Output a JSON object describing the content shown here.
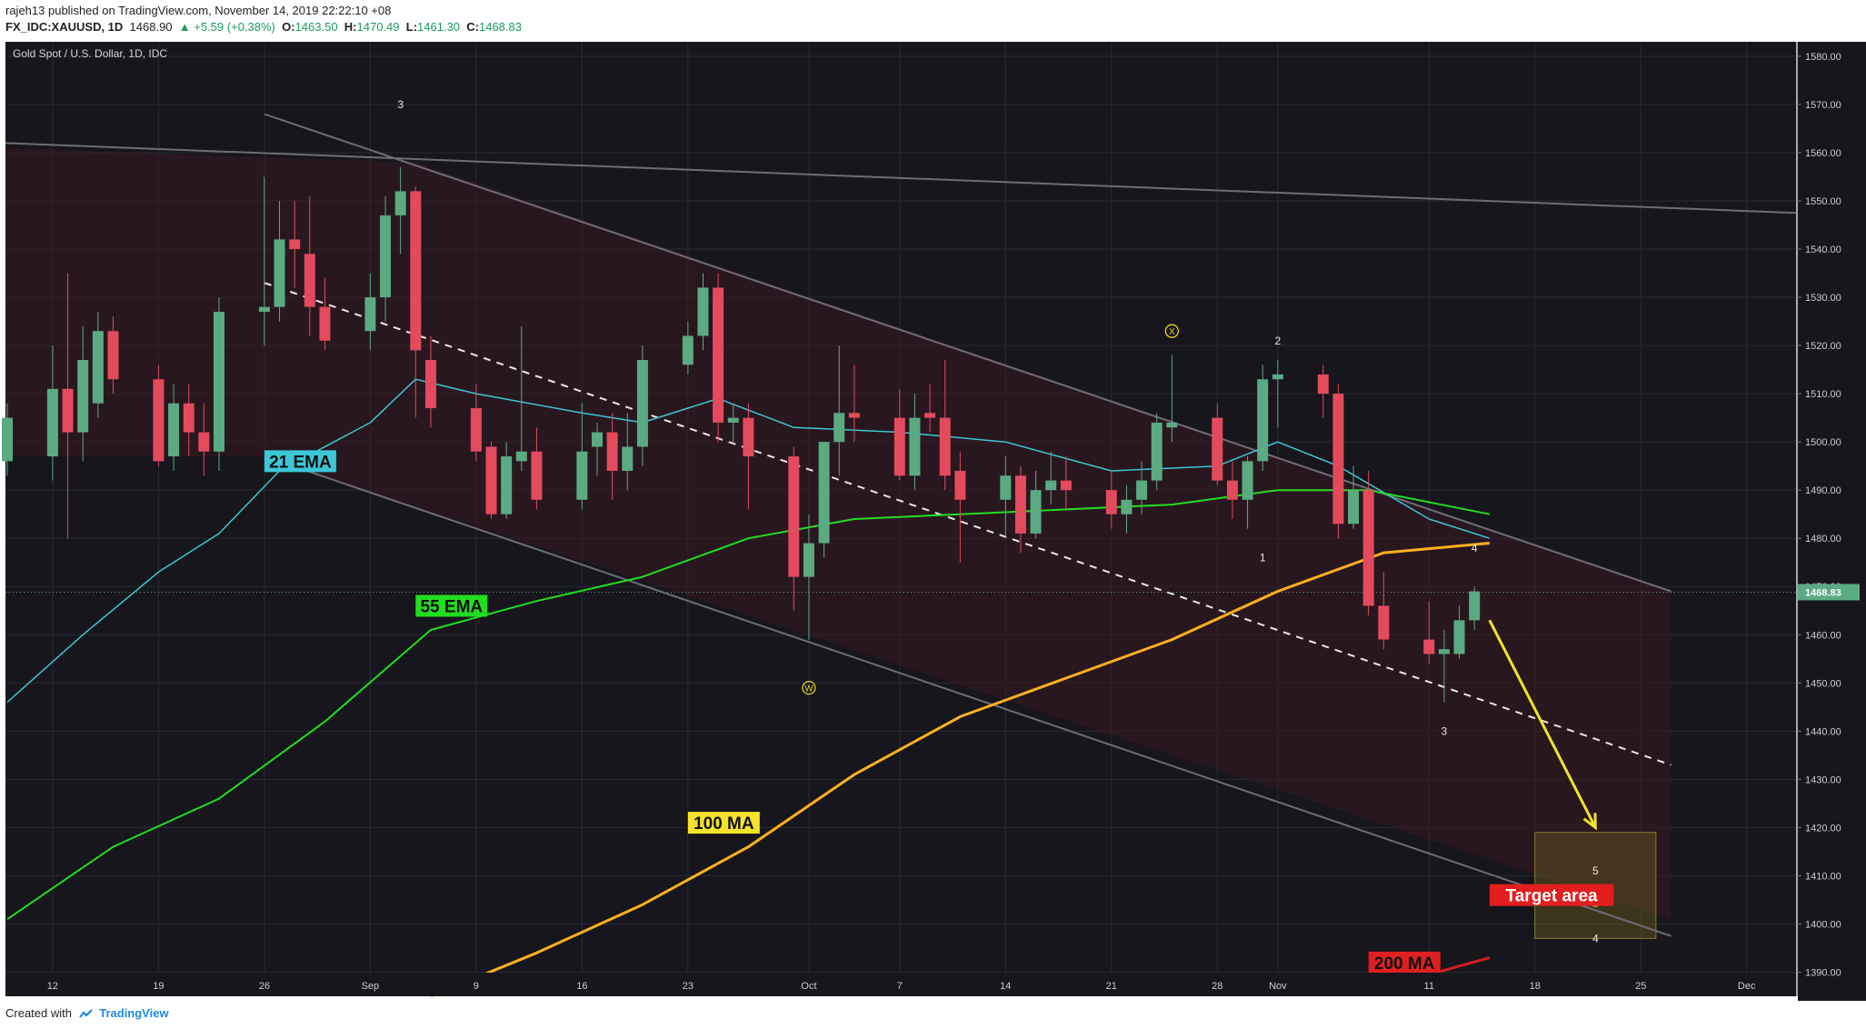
{
  "header": {
    "line1": "rajeh13 published on TradingView.com, November 14, 2019 22:22:10 +08",
    "symbol": "FX_IDC:XAUUSD, 1D",
    "last": "1468.90",
    "change": "▲ +5.59 (+0.38%)",
    "o_label": "O:",
    "o": "1463.50",
    "h_label": "H:",
    "h": "1470.49",
    "l_label": "L:",
    "l": "1461.30",
    "c_label": "C:",
    "c": "1468.83"
  },
  "footer": {
    "created": "Created with",
    "brand": "TradingView"
  },
  "chart_data": {
    "type": "candlestick",
    "title": "Gold Spot / U.S. Dollar, 1D, IDC",
    "ylim": [
      1385,
      1583
    ],
    "y_ticks": [
      1390,
      1400,
      1410,
      1420,
      1430,
      1440,
      1450,
      1460,
      1470,
      1480,
      1490,
      1500,
      1510,
      1520,
      1530,
      1540,
      1550,
      1560,
      1570,
      1580
    ],
    "y_tick_labels": [
      "1390.00",
      "1400.00",
      "1410.00",
      "1420.00",
      "1430.00",
      "1440.00",
      "1450.00",
      "1460.00",
      "1470.00",
      "1480.00",
      "1490.00",
      "1500.00",
      "1510.00",
      "1520.00",
      "1530.00",
      "1540.00",
      "1550.00",
      "1560.00",
      "1570.00",
      "1580.00"
    ],
    "x_range": [
      "2019-08-09",
      "2019-12-04"
    ],
    "x_ticks": [
      {
        "date": "2019-08-12",
        "label": "12"
      },
      {
        "date": "2019-08-19",
        "label": "19"
      },
      {
        "date": "2019-08-26",
        "label": "26"
      },
      {
        "date": "2019-09-02",
        "label": "Sep"
      },
      {
        "date": "2019-09-09",
        "label": "9"
      },
      {
        "date": "2019-09-16",
        "label": "16"
      },
      {
        "date": "2019-09-23",
        "label": "23"
      },
      {
        "date": "2019-10-01",
        "label": "Oct"
      },
      {
        "date": "2019-10-07",
        "label": "7"
      },
      {
        "date": "2019-10-14",
        "label": "14"
      },
      {
        "date": "2019-10-21",
        "label": "21"
      },
      {
        "date": "2019-10-28",
        "label": "28"
      },
      {
        "date": "2019-11-01",
        "label": "Nov"
      },
      {
        "date": "2019-11-11",
        "label": "11"
      },
      {
        "date": "2019-11-18",
        "label": "18"
      },
      {
        "date": "2019-11-25",
        "label": "25"
      },
      {
        "date": "2019-12-02",
        "label": "Dec"
      }
    ],
    "last_price": 1468.83,
    "last_price_label": "1468.83",
    "colors": {
      "up": "#5bab82",
      "down": "#e34b5c",
      "ema21": "#3fc6d6",
      "ema55": "#22dd22",
      "ma100": "#ffb020",
      "ma200": "#d02020",
      "background": "#16161c"
    },
    "candles": [
      {
        "date": "2019-08-09",
        "o": 1496,
        "h": 1508,
        "l": 1493,
        "c": 1505
      },
      {
        "date": "2019-08-12",
        "o": 1497,
        "h": 1520,
        "l": 1492,
        "c": 1511
      },
      {
        "date": "2019-08-13",
        "o": 1511,
        "h": 1535,
        "l": 1480,
        "c": 1502
      },
      {
        "date": "2019-08-14",
        "o": 1502,
        "h": 1524,
        "l": 1496,
        "c": 1517
      },
      {
        "date": "2019-08-15",
        "o": 1508,
        "h": 1527,
        "l": 1505,
        "c": 1523
      },
      {
        "date": "2019-08-16",
        "o": 1523,
        "h": 1526,
        "l": 1510,
        "c": 1513
      },
      {
        "date": "2019-08-19",
        "o": 1513,
        "h": 1516,
        "l": 1495,
        "c": 1496
      },
      {
        "date": "2019-08-20",
        "o": 1497,
        "h": 1512,
        "l": 1494,
        "c": 1508
      },
      {
        "date": "2019-08-21",
        "o": 1508,
        "h": 1512,
        "l": 1497,
        "c": 1502
      },
      {
        "date": "2019-08-22",
        "o": 1502,
        "h": 1508,
        "l": 1493,
        "c": 1498
      },
      {
        "date": "2019-08-23",
        "o": 1498,
        "h": 1530,
        "l": 1494,
        "c": 1527
      },
      {
        "date": "2019-08-26",
        "o": 1527,
        "h": 1555,
        "l": 1520,
        "c": 1528
      },
      {
        "date": "2019-08-27",
        "o": 1528,
        "h": 1550,
        "l": 1525,
        "c": 1542
      },
      {
        "date": "2019-08-28",
        "o": 1542,
        "h": 1550,
        "l": 1532,
        "c": 1540
      },
      {
        "date": "2019-08-29",
        "o": 1539,
        "h": 1551,
        "l": 1522,
        "c": 1528
      },
      {
        "date": "2019-08-30",
        "o": 1528,
        "h": 1534,
        "l": 1519,
        "c": 1521
      },
      {
        "date": "2019-09-02",
        "o": 1523,
        "h": 1535,
        "l": 1519,
        "c": 1530
      },
      {
        "date": "2019-09-03",
        "o": 1530,
        "h": 1551,
        "l": 1525,
        "c": 1547
      },
      {
        "date": "2019-09-04",
        "o": 1547,
        "h": 1557,
        "l": 1539,
        "c": 1552
      },
      {
        "date": "2019-09-05",
        "o": 1552,
        "h": 1553,
        "l": 1505,
        "c": 1519
      },
      {
        "date": "2019-09-06",
        "o": 1517,
        "h": 1522,
        "l": 1503,
        "c": 1507
      },
      {
        "date": "2019-09-09",
        "o": 1507,
        "h": 1512,
        "l": 1496,
        "c": 1498
      },
      {
        "date": "2019-09-10",
        "o": 1499,
        "h": 1500,
        "l": 1484,
        "c": 1485
      },
      {
        "date": "2019-09-11",
        "o": 1485,
        "h": 1500,
        "l": 1484,
        "c": 1497
      },
      {
        "date": "2019-09-12",
        "o": 1496,
        "h": 1524,
        "l": 1494,
        "c": 1498
      },
      {
        "date": "2019-09-13",
        "o": 1498,
        "h": 1503,
        "l": 1486,
        "c": 1488
      },
      {
        "date": "2019-09-16",
        "o": 1488,
        "h": 1508,
        "l": 1486,
        "c": 1498
      },
      {
        "date": "2019-09-17",
        "o": 1499,
        "h": 1504,
        "l": 1493,
        "c": 1502
      },
      {
        "date": "2019-09-18",
        "o": 1502,
        "h": 1506,
        "l": 1488,
        "c": 1494
      },
      {
        "date": "2019-09-19",
        "o": 1494,
        "h": 1506,
        "l": 1490,
        "c": 1499
      },
      {
        "date": "2019-09-20",
        "o": 1499,
        "h": 1520,
        "l": 1495,
        "c": 1517
      },
      {
        "date": "2019-09-23",
        "o": 1516,
        "h": 1525,
        "l": 1514,
        "c": 1522
      },
      {
        "date": "2019-09-24",
        "o": 1522,
        "h": 1535,
        "l": 1519,
        "c": 1532
      },
      {
        "date": "2019-09-25",
        "o": 1532,
        "h": 1535,
        "l": 1500,
        "c": 1504
      },
      {
        "date": "2019-09-26",
        "o": 1504,
        "h": 1508,
        "l": 1500,
        "c": 1505
      },
      {
        "date": "2019-09-27",
        "o": 1505,
        "h": 1508,
        "l": 1486,
        "c": 1497
      },
      {
        "date": "2019-09-30",
        "o": 1497,
        "h": 1499,
        "l": 1465,
        "c": 1472
      },
      {
        "date": "2019-10-01",
        "o": 1472,
        "h": 1485,
        "l": 1459,
        "c": 1479
      },
      {
        "date": "2019-10-02",
        "o": 1479,
        "h": 1500,
        "l": 1476,
        "c": 1500
      },
      {
        "date": "2019-10-03",
        "o": 1500,
        "h": 1520,
        "l": 1493,
        "c": 1506
      },
      {
        "date": "2019-10-04",
        "o": 1506,
        "h": 1516,
        "l": 1500,
        "c": 1505
      },
      {
        "date": "2019-10-07",
        "o": 1505,
        "h": 1511,
        "l": 1492,
        "c": 1493
      },
      {
        "date": "2019-10-08",
        "o": 1493,
        "h": 1510,
        "l": 1490,
        "c": 1505
      },
      {
        "date": "2019-10-09",
        "o": 1506,
        "h": 1512,
        "l": 1502,
        "c": 1505
      },
      {
        "date": "2019-10-10",
        "o": 1505,
        "h": 1517,
        "l": 1490,
        "c": 1493
      },
      {
        "date": "2019-10-11",
        "o": 1494,
        "h": 1498,
        "l": 1475,
        "c": 1488
      },
      {
        "date": "2019-10-14",
        "o": 1488,
        "h": 1497,
        "l": 1480,
        "c": 1493
      },
      {
        "date": "2019-10-15",
        "o": 1493,
        "h": 1495,
        "l": 1477,
        "c": 1481
      },
      {
        "date": "2019-10-16",
        "o": 1481,
        "h": 1494,
        "l": 1480,
        "c": 1490
      },
      {
        "date": "2019-10-17",
        "o": 1490,
        "h": 1498,
        "l": 1487,
        "c": 1492
      },
      {
        "date": "2019-10-18",
        "o": 1492,
        "h": 1497,
        "l": 1486,
        "c": 1490
      },
      {
        "date": "2019-10-21",
        "o": 1490,
        "h": 1494,
        "l": 1482,
        "c": 1485
      },
      {
        "date": "2019-10-22",
        "o": 1485,
        "h": 1491,
        "l": 1481,
        "c": 1488
      },
      {
        "date": "2019-10-23",
        "o": 1488,
        "h": 1496,
        "l": 1485,
        "c": 1492
      },
      {
        "date": "2019-10-24",
        "o": 1492,
        "h": 1506,
        "l": 1490,
        "c": 1504
      },
      {
        "date": "2019-10-25",
        "o": 1503,
        "h": 1518,
        "l": 1500,
        "c": 1504
      },
      {
        "date": "2019-10-28",
        "o": 1505,
        "h": 1508,
        "l": 1491,
        "c": 1492
      },
      {
        "date": "2019-10-29",
        "o": 1492,
        "h": 1496,
        "l": 1484,
        "c": 1488
      },
      {
        "date": "2019-10-30",
        "o": 1488,
        "h": 1497,
        "l": 1482,
        "c": 1496
      },
      {
        "date": "2019-10-31",
        "o": 1496,
        "h": 1516,
        "l": 1494,
        "c": 1513
      },
      {
        "date": "2019-11-01",
        "o": 1513,
        "h": 1517,
        "l": 1503,
        "c": 1514
      },
      {
        "date": "2019-11-04",
        "o": 1514,
        "h": 1516,
        "l": 1505,
        "c": 1510
      },
      {
        "date": "2019-11-05",
        "o": 1510,
        "h": 1512,
        "l": 1480,
        "c": 1483
      },
      {
        "date": "2019-11-06",
        "o": 1483,
        "h": 1495,
        "l": 1482,
        "c": 1490
      },
      {
        "date": "2019-11-07",
        "o": 1490,
        "h": 1494,
        "l": 1464,
        "c": 1466
      },
      {
        "date": "2019-11-08",
        "o": 1466,
        "h": 1473,
        "l": 1457,
        "c": 1459
      },
      {
        "date": "2019-11-11",
        "o": 1459,
        "h": 1467,
        "l": 1454,
        "c": 1456
      },
      {
        "date": "2019-11-12",
        "o": 1456,
        "h": 1461,
        "l": 1446,
        "c": 1457
      },
      {
        "date": "2019-11-13",
        "o": 1456,
        "h": 1466,
        "l": 1455,
        "c": 1463
      },
      {
        "date": "2019-11-14",
        "o": 1463,
        "h": 1470,
        "l": 1461,
        "c": 1469
      }
    ],
    "indicators": [
      {
        "name": "21 EMA",
        "label": "21 EMA",
        "points": [
          [
            "2019-08-09",
            1446
          ],
          [
            "2019-08-14",
            1460
          ],
          [
            "2019-08-19",
            1473
          ],
          [
            "2019-08-23",
            1481
          ],
          [
            "2019-08-27",
            1494
          ],
          [
            "2019-09-02",
            1504
          ],
          [
            "2019-09-05",
            1513
          ],
          [
            "2019-09-09",
            1510
          ],
          [
            "2019-09-16",
            1506
          ],
          [
            "2019-09-20",
            1504
          ],
          [
            "2019-09-25",
            1509
          ],
          [
            "2019-09-30",
            1503
          ],
          [
            "2019-10-07",
            1502
          ],
          [
            "2019-10-14",
            1500
          ],
          [
            "2019-10-21",
            1494
          ],
          [
            "2019-10-28",
            1495
          ],
          [
            "2019-11-01",
            1500
          ],
          [
            "2019-11-05",
            1495
          ],
          [
            "2019-11-11",
            1484
          ],
          [
            "2019-11-15",
            1480
          ]
        ]
      },
      {
        "name": "55 EMA",
        "label": "55 EMA",
        "points": [
          [
            "2019-08-09",
            1401
          ],
          [
            "2019-08-16",
            1416
          ],
          [
            "2019-08-23",
            1426
          ],
          [
            "2019-08-30",
            1442
          ],
          [
            "2019-09-06",
            1461
          ],
          [
            "2019-09-13",
            1467
          ],
          [
            "2019-09-20",
            1472
          ],
          [
            "2019-09-27",
            1480
          ],
          [
            "2019-10-04",
            1484
          ],
          [
            "2019-10-11",
            1485
          ],
          [
            "2019-10-18",
            1486
          ],
          [
            "2019-10-25",
            1487
          ],
          [
            "2019-11-01",
            1490
          ],
          [
            "2019-11-07",
            1490
          ],
          [
            "2019-11-15",
            1485
          ]
        ]
      },
      {
        "name": "100 MA",
        "label": "100 MA",
        "points": [
          [
            "2019-09-06",
            1385
          ],
          [
            "2019-09-13",
            1394
          ],
          [
            "2019-09-20",
            1404
          ],
          [
            "2019-09-27",
            1416
          ],
          [
            "2019-10-04",
            1431
          ],
          [
            "2019-10-11",
            1443
          ],
          [
            "2019-10-18",
            1451
          ],
          [
            "2019-10-25",
            1459
          ],
          [
            "2019-11-01",
            1469
          ],
          [
            "2019-11-08",
            1477
          ],
          [
            "2019-11-15",
            1479
          ]
        ]
      },
      {
        "name": "200 MA",
        "label": "200 MA",
        "points": [
          [
            "2019-11-07",
            1386
          ],
          [
            "2019-11-15",
            1393
          ]
        ]
      }
    ],
    "annotations": [
      {
        "text": "3",
        "date": "2019-09-04",
        "price": 1570
      },
      {
        "text": "X",
        "date": "2019-10-25",
        "price": 1523,
        "circled": true
      },
      {
        "text": "2",
        "date": "2019-11-01",
        "price": 1521
      },
      {
        "text": "1",
        "date": "2019-10-31",
        "price": 1476
      },
      {
        "text": "4",
        "date": "2019-11-14",
        "price": 1478
      },
      {
        "text": "3",
        "date": "2019-11-12",
        "price": 1440
      },
      {
        "text": "W",
        "date": "2019-10-01",
        "price": 1449,
        "circled": true
      },
      {
        "text": "5",
        "date": "2019-11-22",
        "price": 1411
      },
      {
        "text": "Y",
        "date": "2019-11-22",
        "price": 1405,
        "circled": true
      },
      {
        "text": "4",
        "date": "2019-11-22",
        "price": 1397
      }
    ],
    "labels": {
      "ema21": "21 EMA",
      "ema55": "55 EMA",
      "ma100": "100 MA",
      "ma200": "200 MA",
      "target": "Target area"
    }
  }
}
